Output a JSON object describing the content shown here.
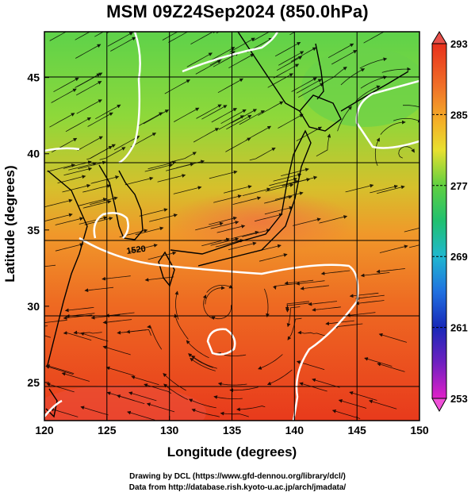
{
  "title": "MSM 09Z24Sep2024 (850.0hPa)",
  "xaxis": {
    "label": "Longitude (degrees)",
    "range": [
      120,
      150
    ],
    "ticks": [
      "120",
      "125",
      "130",
      "135",
      "140",
      "145",
      "150"
    ]
  },
  "yaxis": {
    "label": "Latitude  (degrees)",
    "range": [
      22.5,
      48
    ],
    "ticks": [
      "25",
      "30",
      "35",
      "40",
      "45"
    ]
  },
  "colorbar": {
    "range": [
      253,
      293
    ],
    "ticks": [
      "293",
      "285",
      "277",
      "269",
      "261",
      "253"
    ]
  },
  "contour_label": "1520",
  "credits": [
    "Drawing by DCL (https://www.gfd-dennou.org/library/dcl/)",
    "Data from http://database.rish.kyoto-u.ac.jp/arch/jmadata/"
  ],
  "colors": {
    "warm": "#e8301c",
    "mid": "#f4a020",
    "cool": "#48c848",
    "contour": "#ffffff",
    "coast": "#000000"
  }
}
